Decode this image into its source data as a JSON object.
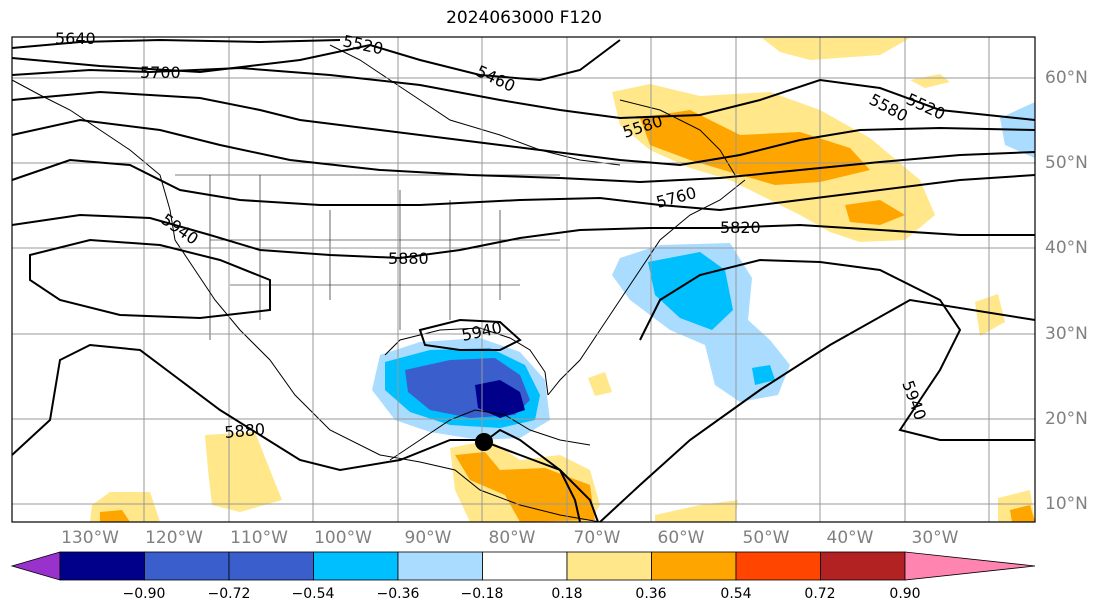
{
  "title": "2024063000 F120",
  "lon_labels": [
    "130°W",
    "120°W",
    "110°W",
    "100°W",
    "90°W",
    "80°W",
    "70°W",
    "60°W",
    "50°W",
    "40°W",
    "30°W"
  ],
  "lat_labels": [
    "60°N",
    "50°N",
    "40°N",
    "30°N",
    "20°N",
    "10°N"
  ],
  "contour_labels": [
    "5640",
    "5520",
    "5700",
    "5460",
    "5580",
    "5580",
    "5520",
    "5940",
    "5760",
    "5820",
    "5880",
    "5940",
    "5940",
    "5880"
  ],
  "colorbar": {
    "ticks": [
      "−0.90",
      "−0.72",
      "−0.54",
      "−0.36",
      "−0.18",
      "0.18",
      "0.36",
      "0.54",
      "0.72",
      "0.90"
    ],
    "colors": [
      "#9932cc",
      "#00008b",
      "#3a5fcd",
      "#00bfff",
      "#aadcff",
      "#ffffff",
      "#ffe78a",
      "#ffa500",
      "#ff4500",
      "#b22222",
      "#ff85b0"
    ]
  },
  "colors": {
    "warm_light": "#ffe78a",
    "warm_mid": "#ffa500",
    "cool_light": "#aadcff",
    "cool_mid": "#00bfff",
    "cool_strong": "#3a5fcd",
    "cool_deep": "#00008b"
  }
}
